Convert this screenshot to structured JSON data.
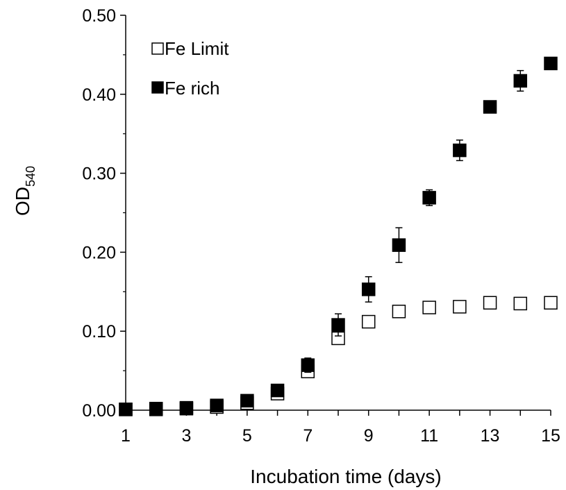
{
  "chart_data": {
    "type": "scatter",
    "title": "",
    "xlabel": "Incubation time (days)",
    "ylabel": {
      "main": "OD",
      "subscript": "540"
    },
    "xlim": [
      1,
      15
    ],
    "ylim": [
      0,
      0.5
    ],
    "xticks": [
      "1",
      "3",
      "5",
      "7",
      "9",
      "11",
      "13",
      "15"
    ],
    "yticks": [
      "0.00",
      "0.10",
      "0.20",
      "0.30",
      "0.40",
      "0.50"
    ],
    "grid": false,
    "legend_position": "top-left",
    "series": [
      {
        "name": "Fe Limit",
        "marker": "open-square",
        "color": "#000000",
        "x": [
          1,
          2,
          3,
          4,
          5,
          6,
          7,
          8,
          9,
          10,
          11,
          12,
          13,
          14,
          15
        ],
        "y": [
          0.001,
          0.001,
          0.002,
          0.004,
          0.009,
          0.021,
          0.049,
          0.091,
          0.112,
          0.125,
          0.13,
          0.131,
          0.136,
          0.135,
          0.136
        ],
        "err": [
          0,
          0,
          0,
          0,
          0,
          0,
          0,
          0,
          0,
          0,
          0,
          0,
          0,
          0,
          0
        ]
      },
      {
        "name": "Fe rich",
        "marker": "filled-square",
        "color": "#000000",
        "x": [
          1,
          2,
          3,
          4,
          5,
          6,
          7,
          8,
          9,
          10,
          11,
          12,
          13,
          14,
          15
        ],
        "y": [
          0.001,
          0.002,
          0.003,
          0.006,
          0.012,
          0.025,
          0.057,
          0.108,
          0.153,
          0.209,
          0.269,
          0.329,
          0.384,
          0.417,
          0.439
        ],
        "err": [
          0,
          0,
          0,
          0,
          0,
          0.003,
          0.009,
          0.014,
          0.016,
          0.022,
          0.01,
          0.013,
          0.006,
          0.013,
          0.005
        ]
      }
    ]
  }
}
